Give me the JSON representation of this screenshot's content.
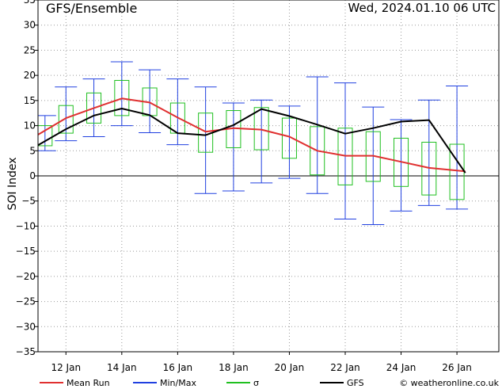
{
  "header": {
    "title": "GFS/Ensemble",
    "datetime": "Wed, 2024.01.10   06 UTC"
  },
  "legend": {
    "items": [
      {
        "label": "Mean Run",
        "color": "#e03030"
      },
      {
        "label": "Min/Max",
        "color": "#2040e0"
      },
      {
        "label": "σ",
        "color": "#20c020"
      },
      {
        "label": "GFS",
        "color": "#000000"
      }
    ],
    "credit": "© weatheronline.co.uk"
  },
  "chart_data": {
    "type": "line",
    "ylabel": "SOI Index",
    "ylim": [
      -35,
      35
    ],
    "yticks": [
      35,
      30,
      25,
      20,
      15,
      10,
      5,
      0,
      -5,
      -10,
      -15,
      -20,
      -25,
      -30,
      -35
    ],
    "xlim": [
      0,
      16.5
    ],
    "xticks": [
      {
        "x": 1,
        "label": "12 Jan"
      },
      {
        "x": 3,
        "label": "14 Jan"
      },
      {
        "x": 5,
        "label": "16 Jan"
      },
      {
        "x": 7,
        "label": "18 Jan"
      },
      {
        "x": 9,
        "label": "20 Jan"
      },
      {
        "x": 11,
        "label": "22 Jan"
      },
      {
        "x": 13,
        "label": "24 Jan"
      },
      {
        "x": 15,
        "label": "26 Jan"
      }
    ],
    "boxes": [
      {
        "x": 0.25,
        "min": 5,
        "max": 12,
        "sd_low": 6,
        "sd_high": 10
      },
      {
        "x": 1.0,
        "min": 7,
        "max": 17.7,
        "sd_low": 8.5,
        "sd_high": 14
      },
      {
        "x": 2.0,
        "min": 7.8,
        "max": 19.3,
        "sd_low": 10.5,
        "sd_high": 16.5
      },
      {
        "x": 3.0,
        "min": 10,
        "max": 22.7,
        "sd_low": 12,
        "sd_high": 19
      },
      {
        "x": 4.0,
        "min": 8.6,
        "max": 21.1,
        "sd_low": 12,
        "sd_high": 17.5
      },
      {
        "x": 5.0,
        "min": 6.2,
        "max": 19.3,
        "sd_low": 8.5,
        "sd_high": 14.5
      },
      {
        "x": 6.0,
        "min": -3.5,
        "max": 17.7,
        "sd_low": 4.7,
        "sd_high": 12.5
      },
      {
        "x": 7.0,
        "min": -3,
        "max": 14.5,
        "sd_low": 5.6,
        "sd_high": 13
      },
      {
        "x": 8.0,
        "min": -1.4,
        "max": 15.1,
        "sd_low": 5.2,
        "sd_high": 13.6
      },
      {
        "x": 9.0,
        "min": -0.5,
        "max": 13.9,
        "sd_low": 3.5,
        "sd_high": 11.5
      },
      {
        "x": 10.0,
        "min": -3.5,
        "max": 19.7,
        "sd_low": 0.2,
        "sd_high": 9.8
      },
      {
        "x": 11.0,
        "min": -8.6,
        "max": 18.5,
        "sd_low": -1.8,
        "sd_high": 9.5
      },
      {
        "x": 12.0,
        "min": -9.7,
        "max": 13.7,
        "sd_low": -1.1,
        "sd_high": 8.8
      },
      {
        "x": 13.0,
        "min": -7,
        "max": 11.2,
        "sd_low": -2.1,
        "sd_high": 7.5
      },
      {
        "x": 14.0,
        "min": -5.9,
        "max": 15.1,
        "sd_low": -3.8,
        "sd_high": 6.7
      },
      {
        "x": 15.0,
        "min": -6.6,
        "max": 17.9,
        "sd_low": -4.7,
        "sd_high": 6.3
      }
    ],
    "series": [
      {
        "name": "Mean Run",
        "x": [
          0,
          1,
          2,
          3,
          4,
          5,
          6,
          7,
          8,
          9,
          10,
          11,
          12,
          13,
          14,
          15.3
        ],
        "values": [
          8.2,
          11.5,
          13.5,
          15.4,
          14.6,
          11.6,
          8.8,
          9.5,
          9.2,
          7.8,
          5,
          4,
          4,
          2.8,
          1.6,
          0.9
        ]
      },
      {
        "name": "GFS",
        "x": [
          0,
          1,
          2,
          3,
          4,
          5,
          6,
          7,
          8,
          9,
          10,
          11,
          12,
          13,
          14,
          15.3
        ],
        "values": [
          6.1,
          9.3,
          12,
          13.4,
          12.1,
          8.5,
          8.1,
          10.1,
          13.3,
          11.9,
          10.2,
          8.4,
          9.5,
          10.8,
          11.1,
          0.6
        ]
      }
    ]
  }
}
